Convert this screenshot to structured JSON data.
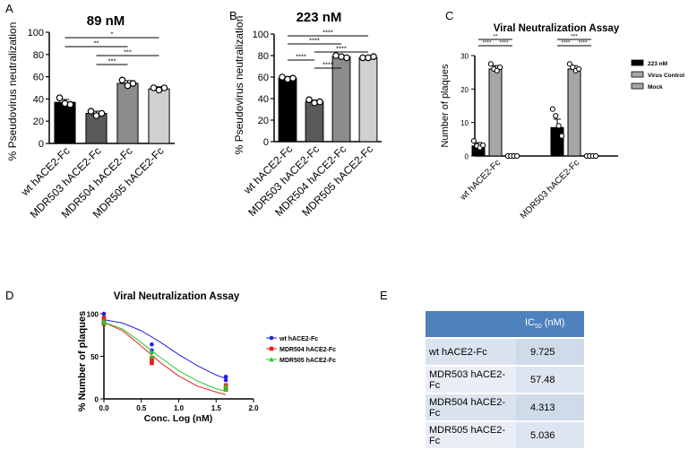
{
  "panel_labels": [
    "A",
    "B",
    "C",
    "D",
    "E"
  ],
  "chart_data": [
    {
      "type": "bar",
      "title": "89 nM",
      "ylabel": "% Pseudovirus neutralization",
      "ylim": [
        0,
        100
      ],
      "yticks": [
        0,
        20,
        40,
        60,
        80,
        100
      ],
      "categories": [
        "wt hACE2-Fc",
        "MDR503 hACE2-Fc",
        "MDR504 hACE2-Fc",
        "MDR505 hACE2-Fc"
      ],
      "values": [
        37,
        27,
        54,
        49
      ],
      "errors": [
        2.5,
        2,
        2.5,
        2
      ],
      "points": [
        [
          41,
          36,
          35
        ],
        [
          29,
          25,
          27
        ],
        [
          57,
          52,
          54
        ],
        [
          50,
          48,
          50
        ]
      ],
      "bar_colors": [
        "#000000",
        "#5a5a5a",
        "#8c8c8c",
        "#d0d0d0"
      ],
      "significance": [
        {
          "from": 0,
          "to": 3,
          "label": "*"
        },
        {
          "from": 0,
          "to": 2,
          "label": "**"
        },
        {
          "from": 1,
          "to": 3,
          "label": "***"
        },
        {
          "from": 1,
          "to": 2,
          "label": "***"
        }
      ]
    },
    {
      "type": "bar",
      "title": "223 nM",
      "ylabel": "% Pseudovirus neutralization",
      "ylim": [
        0,
        100
      ],
      "yticks": [
        0,
        20,
        40,
        60,
        80,
        100
      ],
      "categories": [
        "wt hACE2-Fc",
        "MDR503 hACE2-Fc",
        "MDR504 hACE2-Fc",
        "MDR505 hACE2-Fc"
      ],
      "values": [
        59,
        37,
        79,
        78
      ],
      "errors": [
        1.5,
        1.5,
        1,
        1
      ],
      "points": [
        [
          60,
          58,
          59
        ],
        [
          39,
          36,
          37
        ],
        [
          80,
          79,
          78
        ],
        [
          78,
          78,
          79
        ]
      ],
      "bar_colors": [
        "#000000",
        "#5a5a5a",
        "#8c8c8c",
        "#d0d0d0"
      ],
      "significance": [
        {
          "from": 0,
          "to": 3,
          "label": "****"
        },
        {
          "from": 0,
          "to": 2,
          "label": "****"
        },
        {
          "from": 1,
          "to": 3,
          "label": "****"
        },
        {
          "from": 0,
          "to": 1,
          "label": "****"
        },
        {
          "from": 1,
          "to": 2,
          "label": "****"
        }
      ]
    },
    {
      "type": "bar",
      "title": "Viral Neutralization Assay",
      "ylabel": "Number of plaques",
      "ylim": [
        0,
        30
      ],
      "yticks": [
        0,
        10,
        20,
        30
      ],
      "groups": [
        "wt hACE2-Fc",
        "MDR503 hACE2-Fc"
      ],
      "series": [
        {
          "name": "223 nM",
          "color": "#000000",
          "values": [
            3,
            8.5
          ],
          "errors": [
            1,
            2.5
          ],
          "points": [
            [
              4.5,
              3,
              2.5,
              3.2
            ],
            [
              14,
              12,
              9,
              6
            ]
          ]
        },
        {
          "name": "Virus Control",
          "color": "#a6a6a6",
          "values": [
            26,
            26
          ],
          "errors": [
            1,
            1
          ],
          "points": [
            [
              27.5,
              26,
              25.5,
              26.5
            ],
            [
              27.5,
              26.5,
              25.5,
              26
            ]
          ]
        },
        {
          "name": "Mock",
          "color": "#a6a6a6",
          "values": [
            0,
            0
          ],
          "errors": [
            0,
            0
          ],
          "points": [
            [
              0,
              0,
              0,
              0
            ],
            [
              0,
              0,
              0,
              0
            ]
          ]
        }
      ],
      "significance": [
        {
          "group": 0,
          "from": 0,
          "to": 2,
          "label": "**"
        },
        {
          "group": 0,
          "from": 0,
          "to": 1,
          "label": "****"
        },
        {
          "group": 0,
          "from": 1,
          "to": 2,
          "label": "****"
        },
        {
          "group": 1,
          "from": 0,
          "to": 2,
          "label": "***"
        },
        {
          "group": 1,
          "from": 0,
          "to": 1,
          "label": "****"
        },
        {
          "group": 1,
          "from": 1,
          "to": 2,
          "label": "****"
        }
      ],
      "legend_position": "right"
    },
    {
      "type": "line",
      "title": "Viral Neutralization Assay",
      "xlabel": "Conc. Log (nM)",
      "ylabel": "% Number of plaques",
      "xlim": [
        0,
        2
      ],
      "ylim": [
        0,
        100
      ],
      "xticks": [
        "0.0",
        "0.5",
        "1.0",
        "1.5",
        "2.0"
      ],
      "yticks": [
        0,
        50,
        100
      ],
      "series": [
        {
          "name": "wt hACE2-Fc",
          "color": "#1f1fe6",
          "marker": "circle",
          "x": [
            0,
            0,
            0,
            0.64,
            0.64,
            1.63,
            1.63
          ],
          "y": [
            100,
            92,
            88,
            64,
            57,
            26,
            22
          ],
          "curve": [
            [
              0,
              93
            ],
            [
              0.25,
              89
            ],
            [
              0.5,
              80
            ],
            [
              0.75,
              67
            ],
            [
              1.0,
              52
            ],
            [
              1.25,
              39
            ],
            [
              1.5,
              28
            ],
            [
              1.63,
              24
            ]
          ]
        },
        {
          "name": "MDR504 hACE2-Fc",
          "color": "#e61f1f",
          "marker": "square",
          "x": [
            0,
            0,
            0,
            0.64,
            0.64,
            0.64,
            1.63,
            1.63,
            1.63
          ],
          "y": [
            95,
            90,
            88,
            48,
            44,
            42,
            16,
            13,
            11
          ],
          "curve": [
            [
              0,
              90
            ],
            [
              0.25,
              80
            ],
            [
              0.5,
              62
            ],
            [
              0.75,
              43
            ],
            [
              1.0,
              27
            ],
            [
              1.25,
              15
            ],
            [
              1.5,
              8
            ],
            [
              1.63,
              5
            ]
          ]
        },
        {
          "name": "MDR505 hACE2-Fc",
          "color": "#22cc22",
          "marker": "triangle",
          "x": [
            0,
            0,
            0.64,
            0.64,
            1.63,
            1.63
          ],
          "y": [
            92,
            89,
            55,
            50,
            15,
            12
          ],
          "curve": [
            [
              0,
              90
            ],
            [
              0.25,
              82
            ],
            [
              0.5,
              66
            ],
            [
              0.75,
              49
            ],
            [
              1.0,
              33
            ],
            [
              1.25,
              21
            ],
            [
              1.5,
              12
            ],
            [
              1.63,
              9
            ]
          ]
        }
      ],
      "legend_position": "right"
    }
  ],
  "table": {
    "headers": [
      "",
      "IC50 (nM)"
    ],
    "header_ic_main": "IC",
    "header_ic_sub": "50",
    "header_ic_unit": " (nM)",
    "rows": [
      {
        "name": "wt hACE2-Fc",
        "value": "9.725"
      },
      {
        "name": "MDR503 hACE2-Fc",
        "value": "57.48"
      },
      {
        "name": "MDR504 hACE2-Fc",
        "value": "4.313"
      },
      {
        "name": "MDR505 hACE2-Fc",
        "value": "5.036"
      }
    ]
  }
}
